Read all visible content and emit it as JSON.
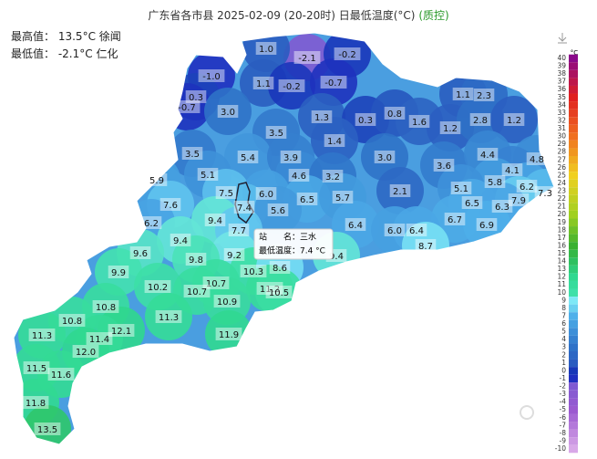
{
  "header": {
    "title": "广东省各市县 2025-02-09 (20-20时) 日最低温度(°C)",
    "qc_link": "(质控)"
  },
  "stats": {
    "max_label": "最高值：",
    "max_value": "13.5°C 徐闻",
    "min_label": "最低值：",
    "min_value": "-2.1°C 仁化"
  },
  "map": {
    "labels": [
      "-2.1",
      "-0.2",
      "1.0",
      "-1.0",
      "1.1",
      "-0.2",
      "-0.7",
      "0.3",
      "-0.7",
      "3.0",
      "1.3",
      "0.3",
      "0.8",
      "1.6",
      "1.1",
      "2.3",
      "1.2",
      "2.8",
      "1.2",
      "3.5",
      "1.4",
      "3.5",
      "5.4",
      "3.9",
      "3.0",
      "3.6",
      "4.4",
      "4.8",
      "4.1",
      "5.1",
      "4.6",
      "3.2",
      "5.9",
      "5.8",
      "6.2",
      "7.3",
      "2.1",
      "5.1",
      "7.5",
      "6.0",
      "6.5",
      "5.7",
      "7.6",
      "7.4",
      "6.5",
      "7.9",
      "6.3",
      "5.6",
      "9.4",
      "6.2",
      "6.7",
      "6.9",
      "6.4",
      "7.7",
      "6.0",
      "6.4",
      "9.4",
      "8.7",
      "9.6",
      "9.2",
      "9.4",
      "9.8",
      "9.9",
      "10.3",
      "8.6",
      "10.2",
      "10.7",
      "10.7",
      "11.2",
      "10.5",
      "10.8",
      "10.9",
      "11.3",
      "10.8",
      "12.1",
      "11.4",
      "11.3",
      "11.9",
      "12.0",
      "11.5",
      "11.6",
      "11.8",
      "13.5"
    ]
  },
  "tooltip": {
    "station": "站　　名：三水",
    "min_temp": "最低温度：7.4 °C"
  },
  "legend": {
    "unit": "°C",
    "ticks": [
      40,
      39,
      38,
      37,
      36,
      35,
      34,
      33,
      32,
      31,
      30,
      29,
      28,
      27,
      26,
      25,
      24,
      23,
      22,
      21,
      20,
      19,
      18,
      17,
      16,
      15,
      14,
      13,
      12,
      11,
      10,
      9,
      8,
      7,
      6,
      5,
      4,
      3,
      2,
      1,
      0,
      -1,
      -2,
      -3,
      -4,
      -5,
      -6,
      -7,
      -8,
      -9,
      -10
    ]
  }
}
